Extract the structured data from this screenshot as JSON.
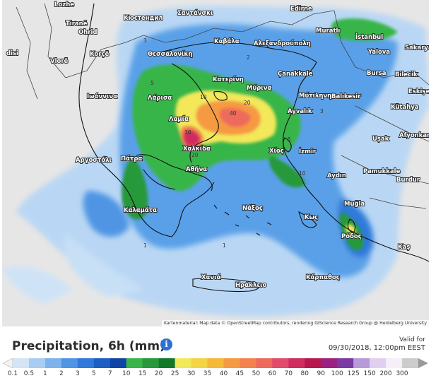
{
  "map": {
    "places": [
      "Lozhe",
      "Tiranë",
      "Ohrid",
      "Korçë",
      "Vlorë",
      "Σαντάνσκι",
      "Κюстендил",
      "Edirne",
      "Θεσσαλονίκη",
      "Καβάλα",
      "Αλεξανδρούπολη",
      "Muratlı",
      "İstanbul",
      "Yalova",
      "Sakarya",
      "Bursa",
      "Bilecik",
      "Çanakkale",
      "Κατερίνη",
      "Ιωάννινα",
      "Λάρισα",
      "Μύρινα",
      "Μύτιληνη",
      "Balıkesir",
      "Ayvalık",
      "Eskişehir",
      "Kütahya",
      "Λαμία",
      "Χαλκίδα",
      "Χίος",
      "İzmir",
      "Uşak",
      "Afyonkarahisar",
      "Αργοστόλι",
      "Πάτρα",
      "Αθήνα",
      "Pamukkale",
      "Aydın",
      "Burdur",
      "Καλαμάτα",
      "Νάξος",
      "Κως",
      "Muğla",
      "Ρόδος",
      "Kaş",
      "Χανιά",
      "Ηράκλειο",
      "Κάρπαθος",
      "disi"
    ],
    "contour_labels": [
      "10",
      "20",
      "40",
      "20",
      "10",
      "5",
      "3",
      "2",
      "1",
      "10",
      "5",
      "3",
      "1"
    ],
    "attribution": "Kartenmaterial: Map data © OpenStreetMap contributors, rendering GIScience Research Group @ Heidelberg University"
  },
  "legend": {
    "title": "Precipitation, 6h (mm)",
    "info_icon": "info-icon",
    "valid_label": "Valid for",
    "valid_time": "09/30/2018, 12:00pm EEST",
    "ticks": [
      "0.1",
      "0.5",
      "1",
      "2",
      "3",
      "5",
      "7",
      "10",
      "15",
      "20",
      "25",
      "30",
      "35",
      "40",
      "45",
      "50",
      "60",
      "70",
      "80",
      "90",
      "100",
      "125",
      "150",
      "200",
      "300"
    ],
    "colors": [
      "#d2e4f6",
      "#a8ccf2",
      "#7db3ec",
      "#4f95e4",
      "#2f7ad9",
      "#1c5fc4",
      "#0f45a6",
      "#39b54a",
      "#27993a",
      "#12792b",
      "#f2e85a",
      "#f4d443",
      "#f6b837",
      "#f59a42",
      "#f3834e",
      "#ee6a5b",
      "#e04c6a",
      "#d02c5f",
      "#b7184f",
      "#9b2282",
      "#7c3aa5",
      "#b89ad9",
      "#e0d0ef",
      "#f6eef9",
      "#cccccc"
    ]
  }
}
